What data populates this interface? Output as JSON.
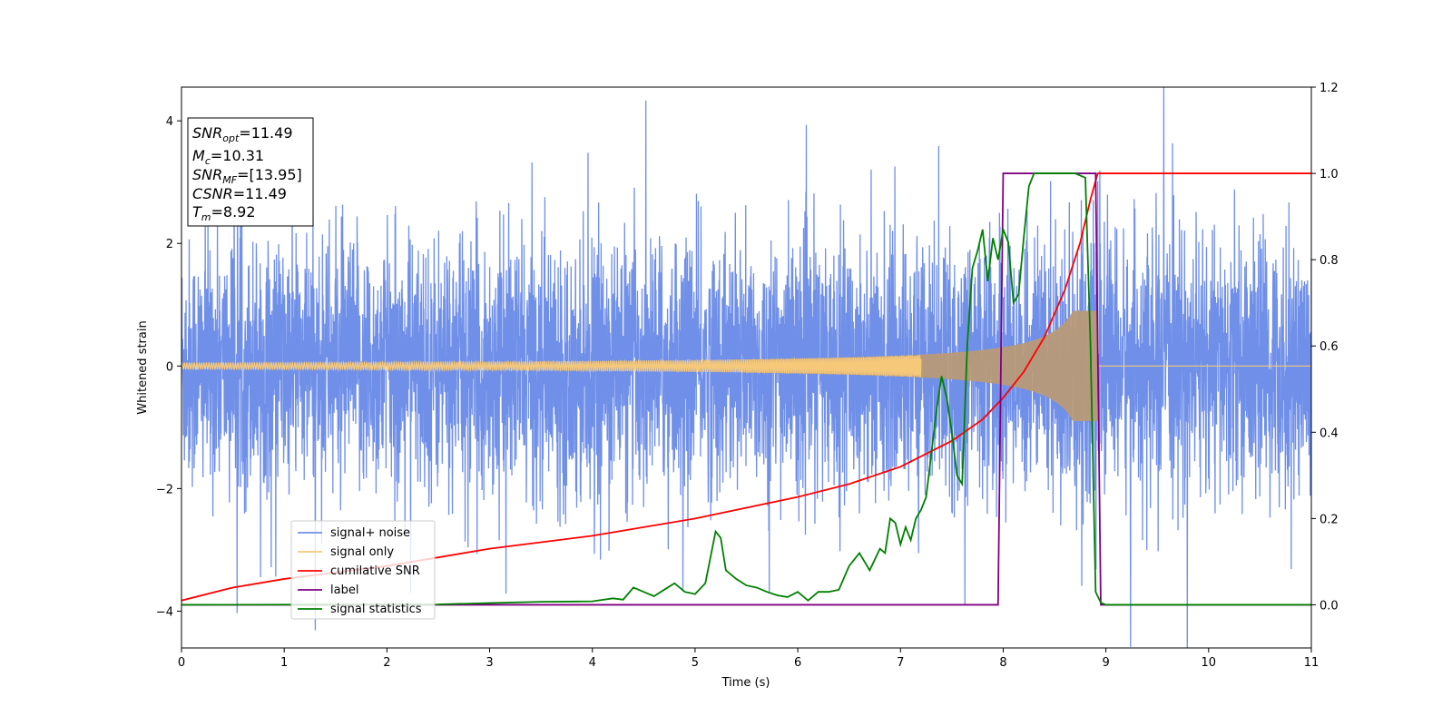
{
  "chart_data": {
    "type": "line",
    "xlabel": "Time (s)",
    "ylabel": "Whitened strain",
    "xlim": [
      0,
      11
    ],
    "ylim_left": [
      -4.6,
      4.55
    ],
    "ylim_right": [
      -0.1,
      1.2
    ],
    "x_ticks": [
      0,
      1,
      2,
      3,
      4,
      5,
      6,
      7,
      8,
      9,
      10,
      11
    ],
    "y_ticks_left": [
      -4,
      -2,
      0,
      2,
      4
    ],
    "y_ticks_right": [
      0.0,
      0.2,
      0.4,
      0.6,
      0.8,
      1.0,
      1.2
    ],
    "grid": false,
    "legend_placement": "lower-left",
    "colors": {
      "signal_noise": "#6f8fe8",
      "signal_only": "#f5c87a",
      "signal_overlap": "#b89a78",
      "cumulative_snr": "#ff0000",
      "label": "#800080",
      "signal_statistics": "#008000"
    },
    "series": [
      {
        "name": "signal+ noise",
        "axis": "left",
        "description_values": "noise ~ N(0,1) from 0 to 11 s",
        "x_range": [
          0,
          11
        ]
      },
      {
        "name": "signal only",
        "axis": "left",
        "x_range": [
          0,
          8.92
        ],
        "peak_amplitude": 0.9
      },
      {
        "name": "cumilative SNR",
        "axis": "right",
        "x": [
          0,
          0.5,
          1,
          2,
          3,
          4,
          5,
          6,
          6.5,
          7,
          7.5,
          7.8,
          8.0,
          8.2,
          8.4,
          8.6,
          8.75,
          8.85,
          8.92,
          8.93,
          9,
          10,
          11
        ],
        "y": [
          0.01,
          0.04,
          0.06,
          0.09,
          0.13,
          0.16,
          0.2,
          0.25,
          0.28,
          0.32,
          0.38,
          0.43,
          0.48,
          0.54,
          0.62,
          0.73,
          0.84,
          0.94,
          1.0,
          1.0,
          1.0,
          1.0,
          1.0
        ]
      },
      {
        "name": "label",
        "axis": "right",
        "x": [
          0,
          7.95,
          8.0,
          8.9,
          8.95,
          11
        ],
        "y": [
          0,
          0,
          1,
          1,
          0,
          0
        ]
      },
      {
        "name": "signal statistics",
        "axis": "right",
        "x": [
          0,
          2.5,
          3.0,
          3.5,
          4.0,
          4.2,
          4.3,
          4.4,
          4.5,
          4.6,
          4.7,
          4.8,
          4.9,
          5.0,
          5.1,
          5.2,
          5.25,
          5.3,
          5.4,
          5.5,
          5.6,
          5.7,
          5.8,
          5.9,
          6.0,
          6.1,
          6.2,
          6.3,
          6.4,
          6.5,
          6.6,
          6.7,
          6.8,
          6.85,
          6.9,
          6.95,
          7.0,
          7.05,
          7.1,
          7.15,
          7.2,
          7.25,
          7.3,
          7.35,
          7.4,
          7.45,
          7.5,
          7.55,
          7.6,
          7.65,
          7.7,
          7.75,
          7.8,
          7.85,
          7.9,
          7.95,
          8.0,
          8.05,
          8.1,
          8.15,
          8.2,
          8.25,
          8.3,
          8.35,
          8.4,
          8.5,
          8.6,
          8.7,
          8.8,
          8.85,
          8.9,
          8.95,
          9.0,
          10,
          11
        ],
        "y": [
          0,
          0.001,
          0.004,
          0.007,
          0.008,
          0.015,
          0.012,
          0.04,
          0.03,
          0.02,
          0.035,
          0.05,
          0.03,
          0.025,
          0.05,
          0.17,
          0.155,
          0.08,
          0.06,
          0.045,
          0.04,
          0.03,
          0.022,
          0.018,
          0.03,
          0.01,
          0.03,
          0.03,
          0.035,
          0.09,
          0.12,
          0.08,
          0.13,
          0.12,
          0.2,
          0.19,
          0.14,
          0.18,
          0.15,
          0.2,
          0.22,
          0.25,
          0.35,
          0.45,
          0.53,
          0.48,
          0.4,
          0.3,
          0.28,
          0.6,
          0.78,
          0.82,
          0.87,
          0.75,
          0.85,
          0.8,
          0.87,
          0.84,
          0.7,
          0.72,
          0.85,
          0.97,
          1.0,
          1.0,
          1.0,
          1.0,
          1.0,
          1.0,
          0.99,
          0.6,
          0.03,
          0.005,
          0.0,
          0.0,
          0.0
        ]
      }
    ],
    "annotations": {
      "snr_opt": "11.49",
      "mc": "10.31",
      "snr_mf": "[13.95]",
      "csnr": "11.49",
      "tm": "8.92"
    }
  }
}
